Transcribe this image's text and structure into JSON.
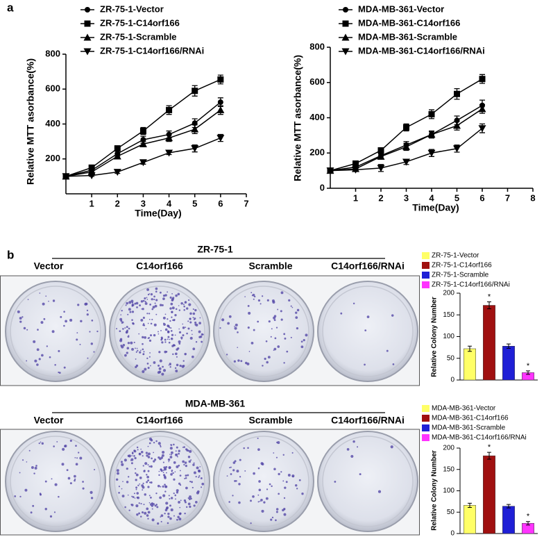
{
  "panel_labels": [
    "a",
    "b"
  ],
  "chart_data": [
    {
      "type": "line",
      "xlabel": "Time(Day)",
      "ylabel": "Relative MTT asorbance(%)",
      "x": [
        0,
        1,
        2,
        3,
        4,
        5,
        6
      ],
      "xlim": [
        0,
        7
      ],
      "xticks": [
        1,
        2,
        3,
        4,
        5,
        6,
        7
      ],
      "ylim": [
        0,
        800
      ],
      "yticks": [
        200,
        400,
        600,
        800
      ],
      "series": [
        {
          "name": "ZR-75-1-Vector",
          "color": "#000000",
          "marker": "circle",
          "values": [
            100,
            135,
            230,
            310,
            340,
            405,
            525
          ],
          "errors": [
            5,
            10,
            15,
            20,
            20,
            25,
            25
          ]
        },
        {
          "name": "ZR-75-1-C14orf166",
          "color": "#000000",
          "marker": "square",
          "values": [
            100,
            150,
            260,
            360,
            480,
            590,
            655
          ],
          "errors": [
            5,
            10,
            15,
            20,
            25,
            30,
            25
          ]
        },
        {
          "name": "ZR-75-1-Scramble",
          "color": "#000000",
          "marker": "triangle",
          "values": [
            100,
            125,
            215,
            285,
            320,
            370,
            480
          ],
          "errors": [
            5,
            10,
            15,
            15,
            20,
            25,
            25
          ]
        },
        {
          "name": "ZR-75-1-C14orf166/RNAi",
          "color": "#000000",
          "marker": "triangle-down",
          "values": [
            100,
            105,
            125,
            180,
            235,
            260,
            320
          ],
          "errors": [
            5,
            5,
            8,
            10,
            10,
            20,
            20
          ]
        }
      ]
    },
    {
      "type": "line",
      "xlabel": "Time(Day)",
      "ylabel": "Relative MTT asorbance(%)",
      "x": [
        0,
        1,
        2,
        3,
        4,
        5,
        6
      ],
      "xlim": [
        0,
        8
      ],
      "xticks": [
        1,
        2,
        3,
        4,
        5,
        6,
        7,
        8
      ],
      "ylim": [
        0,
        800
      ],
      "yticks": [
        0,
        200,
        400,
        600,
        800
      ],
      "series": [
        {
          "name": "MDA-MB-361-Vector",
          "color": "#000000",
          "marker": "circle",
          "values": [
            100,
            120,
            185,
            245,
            305,
            385,
            470
          ],
          "errors": [
            5,
            10,
            15,
            20,
            20,
            25,
            30
          ]
        },
        {
          "name": "MDA-MB-361-C14orf166",
          "color": "#000000",
          "marker": "square",
          "values": [
            100,
            140,
            215,
            345,
            420,
            535,
            620
          ],
          "errors": [
            5,
            10,
            15,
            20,
            25,
            30,
            25
          ]
        },
        {
          "name": "MDA-MB-361-Scramble",
          "color": "#000000",
          "marker": "triangle",
          "values": [
            100,
            110,
            180,
            235,
            305,
            355,
            450
          ],
          "errors": [
            5,
            10,
            15,
            20,
            15,
            25,
            25
          ]
        },
        {
          "name": "MDA-MB-361-C14orf166/RNAi",
          "color": "#000000",
          "marker": "triangle-down",
          "values": [
            100,
            105,
            115,
            150,
            200,
            225,
            340
          ],
          "errors": [
            5,
            8,
            20,
            15,
            20,
            20,
            25
          ]
        }
      ]
    },
    {
      "type": "bar",
      "ylabel": "Relative Colony Number",
      "ylim": [
        0,
        200
      ],
      "yticks": [
        0,
        50,
        100,
        150,
        200
      ],
      "series": [
        {
          "name": "ZR-75-1-Vector",
          "color": "#ffff66",
          "values": [
            72
          ],
          "errors": [
            6
          ]
        },
        {
          "name": "ZR-75-1-C14orf166",
          "color": "#a01010",
          "values": [
            172
          ],
          "errors": [
            8
          ],
          "annotation": "*"
        },
        {
          "name": "ZR-75-1-Scramble",
          "color": "#1f1fd6",
          "values": [
            78
          ],
          "errors": [
            5
          ]
        },
        {
          "name": "ZR-75-1-C14orf166/RNAi",
          "color": "#ff33ff",
          "values": [
            17
          ],
          "errors": [
            4
          ],
          "annotation": "*"
        }
      ]
    },
    {
      "type": "bar",
      "ylabel": "Relative Colony Number",
      "ylim": [
        0,
        200
      ],
      "yticks": [
        0,
        50,
        100,
        150,
        200
      ],
      "series": [
        {
          "name": "MDA-MB-361-Vector",
          "color": "#ffff66",
          "values": [
            66
          ],
          "errors": [
            5
          ]
        },
        {
          "name": "MDA-MB-361-C14orf166",
          "color": "#a01010",
          "values": [
            182
          ],
          "errors": [
            8
          ],
          "annotation": "*"
        },
        {
          "name": "MDA-MB-361-Scramble",
          "color": "#1f1fd6",
          "values": [
            64
          ],
          "errors": [
            4
          ]
        },
        {
          "name": "MDA-MB-361-C14orf166/RNAi",
          "color": "#ff33ff",
          "values": [
            24
          ],
          "errors": [
            4
          ],
          "annotation": "*"
        }
      ]
    }
  ],
  "plates": [
    {
      "cell_line": "ZR-75-1",
      "conditions": [
        "Vector",
        "C14orf166",
        "Scramble",
        "C14orf166/RNAi"
      ]
    },
    {
      "cell_line": "MDA-MB-361",
      "conditions": [
        "Vector",
        "C14orf166",
        "Scramble",
        "C14orf166/RNAi"
      ]
    }
  ]
}
